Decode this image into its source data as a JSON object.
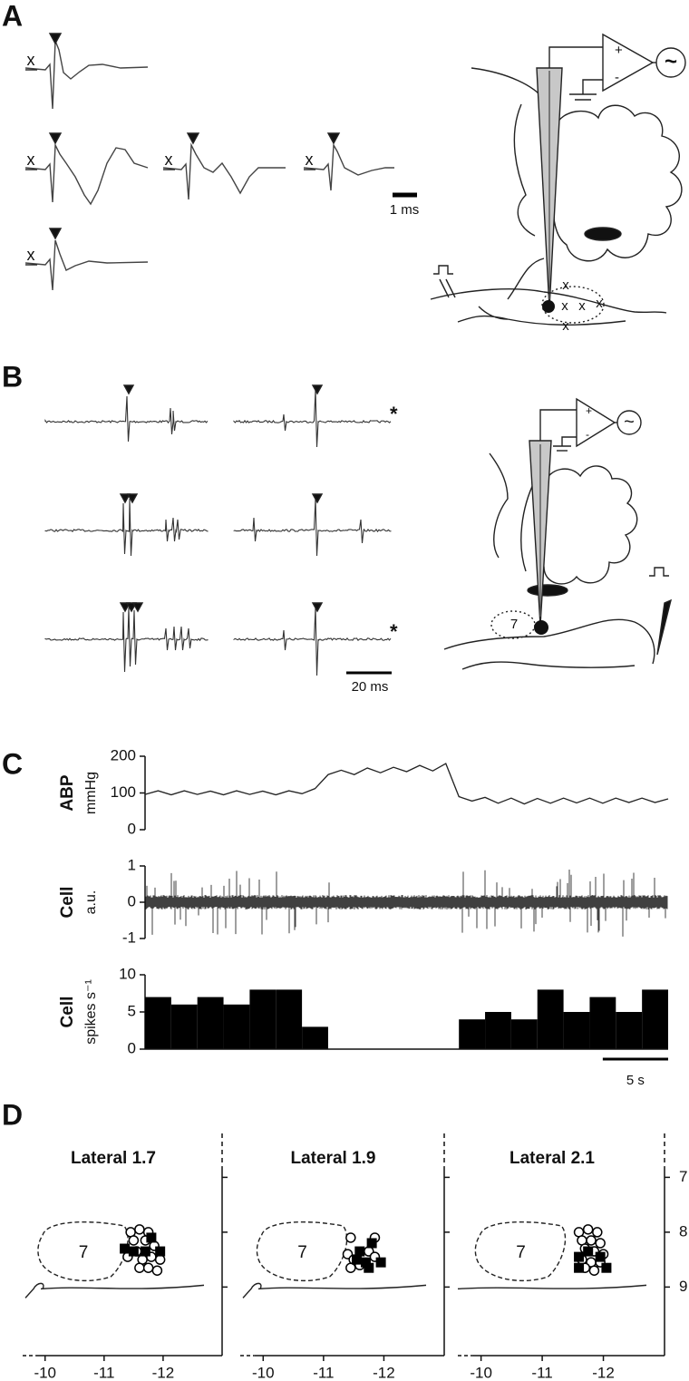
{
  "panels": {
    "a": "A",
    "b": "B",
    "c": "C",
    "d": "D"
  },
  "panel_a": {
    "trace_marker": "x",
    "scale_bar": "1 ms",
    "amplifier_plus": "+",
    "amplifier_minus": "-",
    "output": "~",
    "site_marker": "x"
  },
  "panel_b": {
    "scale_bar": "20 ms",
    "asterisk": "*",
    "amplifier_plus": "+",
    "amplifier_minus": "-",
    "output": "~",
    "nucleus": "7"
  },
  "chart_data": [
    {
      "type": "line",
      "ylabel": "ABP",
      "yunits": "mmHg",
      "x": [
        0,
        1,
        2,
        3,
        4,
        5,
        6,
        7,
        8,
        9,
        10,
        11,
        12,
        13,
        14,
        15,
        16,
        17,
        18,
        19,
        20,
        21,
        22,
        23,
        24,
        25,
        26,
        27,
        28,
        29,
        30,
        31,
        32,
        33,
        34,
        35,
        36,
        37,
        38,
        39,
        40
      ],
      "values": [
        96,
        106,
        95,
        106,
        96,
        105,
        95,
        106,
        96,
        105,
        95,
        106,
        98,
        112,
        150,
        162,
        150,
        168,
        155,
        170,
        158,
        175,
        160,
        180,
        90,
        78,
        88,
        72,
        86,
        70,
        85,
        72,
        86,
        73,
        86,
        72,
        86,
        74,
        86,
        74,
        84
      ],
      "xlim": [
        0,
        40
      ],
      "ylim": [
        0,
        200
      ],
      "yticks": [
        0,
        100,
        200
      ],
      "color": "#222222"
    },
    {
      "type": "trace",
      "ylabel": "Cell",
      "yunits": "a.u.",
      "ylim": [
        -1,
        1
      ],
      "yticks": [
        -1,
        0,
        1
      ]
    },
    {
      "type": "histogram",
      "ylabel": "Cell",
      "yunits": "spikes s⁻¹",
      "bins": [
        0,
        2,
        4,
        6,
        8,
        10,
        12,
        14,
        16,
        18,
        20,
        22,
        24,
        26,
        28,
        30,
        32,
        34,
        36,
        38,
        40
      ],
      "values": [
        7,
        6,
        7,
        6,
        8,
        8,
        3,
        0,
        0,
        0,
        0,
        0,
        4,
        5,
        4,
        8,
        5,
        7,
        5,
        8
      ],
      "xlim": [
        0,
        40
      ],
      "ylim": [
        0,
        10
      ],
      "yticks": [
        0,
        5,
        10
      ],
      "color": "#000000",
      "scale_bar": {
        "value": 5,
        "label": "5 s"
      }
    },
    {
      "type": "scatter",
      "title": "Lateral 1.7",
      "nucleus_label": "7",
      "xlim": [
        -9.62,
        -13.0
      ],
      "ylim": [
        10.25,
        6.2
      ],
      "xticks": [
        -10,
        -11,
        -12
      ],
      "yticks": [
        7,
        8,
        9
      ],
      "ytick_labels": false,
      "series": [
        {
          "marker": "circle",
          "color": "#000000",
          "x": [
            -11.45,
            -11.6,
            -11.75,
            -11.5,
            -11.7,
            -11.85,
            -11.55,
            -11.4,
            -11.65,
            -11.8,
            -11.95,
            -11.6,
            -11.9,
            -11.75
          ],
          "values": [
            8.0,
            7.95,
            8.0,
            8.15,
            8.15,
            8.25,
            8.35,
            8.45,
            8.5,
            8.45,
            8.5,
            8.65,
            8.7,
            8.65
          ]
        },
        {
          "marker": "square",
          "color": "#000000",
          "x": [
            -11.8,
            -11.35,
            -11.5,
            -11.95,
            -11.7
          ],
          "values": [
            8.1,
            8.3,
            8.35,
            8.35,
            8.35
          ]
        }
      ]
    },
    {
      "type": "scatter",
      "title": "Lateral 1.9",
      "nucleus_label": "7",
      "xlim": [
        -9.62,
        -13.0
      ],
      "ylim": [
        10.25,
        6.2
      ],
      "xticks": [
        -10,
        -11,
        -12
      ],
      "yticks": [
        7,
        8,
        9
      ],
      "ytick_labels": false,
      "series": [
        {
          "marker": "circle",
          "color": "#000000",
          "x": [
            -11.45,
            -11.4,
            -11.5,
            -11.45,
            -11.6,
            -11.75,
            -11.85,
            -11.85
          ],
          "values": [
            8.1,
            8.4,
            8.5,
            8.65,
            8.6,
            8.35,
            8.45,
            8.1
          ]
        },
        {
          "marker": "square",
          "color": "#000000",
          "x": [
            -11.8,
            -11.6,
            -11.55,
            -11.7,
            -11.95,
            -11.75
          ],
          "values": [
            8.2,
            8.35,
            8.5,
            8.55,
            8.55,
            8.65
          ]
        }
      ]
    },
    {
      "type": "scatter",
      "title": "Lateral 2.1",
      "nucleus_label": "7",
      "xlim": [
        -9.62,
        -13.0
      ],
      "ylim": [
        10.25,
        6.2
      ],
      "xticks": [
        -10,
        -11,
        -12
      ],
      "yticks": [
        7,
        8,
        9
      ],
      "ytick_labels": true,
      "series": [
        {
          "marker": "circle",
          "color": "#000000",
          "x": [
            -11.6,
            -11.75,
            -11.9,
            -11.65,
            -11.8,
            -11.95,
            -11.7,
            -11.85,
            -12.0,
            -11.65,
            -11.8,
            -11.95,
            -11.7,
            -11.85
          ],
          "values": [
            8.0,
            7.95,
            8.0,
            8.15,
            8.15,
            8.2,
            8.3,
            8.35,
            8.4,
            8.5,
            8.55,
            8.55,
            8.65,
            8.7
          ]
        },
        {
          "marker": "square",
          "color": "#000000",
          "x": [
            -11.75,
            -11.6,
            -11.95,
            -11.6,
            -12.05
          ],
          "values": [
            8.35,
            8.45,
            8.45,
            8.65,
            8.65
          ]
        }
      ]
    }
  ]
}
